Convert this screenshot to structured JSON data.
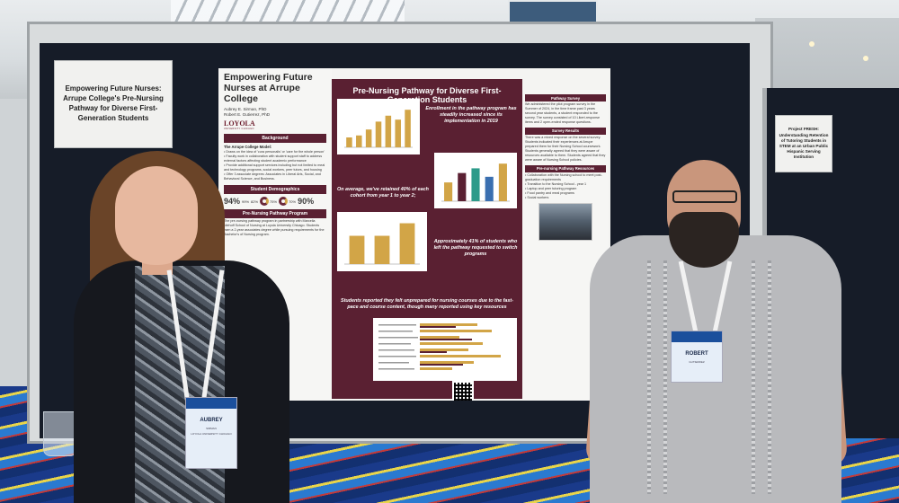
{
  "left_sign": {
    "text": "Empowering Future Nurses: Arrupe College's Pre-Nursing Pathway for Diverse First-Generation Students"
  },
  "right_sign": {
    "text": "Project FRESH: Understanding Retention of Tutoring Students in STEM at an Urban Public Hispanic Serving Institution"
  },
  "poster": {
    "title": "Empowering Future Nurses at Arrupe College",
    "authors": [
      "Aubrey E. Sirman, PhD",
      "Robert E. Gutierrez, PhD"
    ],
    "logo": "LOYOLA",
    "logo_sub": "UNIVERSITY CHICAGO",
    "background": {
      "heading": "Background",
      "model_heading": "The Arrupe College Model:",
      "points": [
        "Draws on the idea of 'cura personalis' or 'care for the whole person'",
        "Faculty work in collaboration with student support staff to address external factors affecting student academic performance",
        "Provide additional support services including but not limited to meal and technology programs, social workers, peer tutors, and housing",
        "Offer 3 associate degrees: Associates in Liberal Arts, Social, and Behavioral Science, and Business."
      ]
    },
    "demographics": {
      "heading": "Student Demographics",
      "stats": [
        {
          "value": "94%"
        },
        {
          "value": "99%"
        },
        {
          "value": "82%"
        },
        {
          "value": "75%"
        },
        {
          "value": "70%"
        },
        {
          "value": "90%"
        }
      ]
    },
    "program_heading": "Pre-Nursing Pathway Program",
    "program_body": "The pre-nursing pathway program in partnership with Marcella Niehoff School of Nursing at Loyola University Chicago. Students earn a 2-year associates degree while pursuing requirements for the Bachelor's of Nursing program.",
    "mid_title": "Pre-Nursing Pathway for Diverse First-Generation Students",
    "mid_points": [
      "Enrollment in the pathway program has steadily increased since its implementation in 2019",
      "On average, we've retained 40% of each cohort from year 1 to year 2;",
      "Approximately 41% of students who left the pathway requested to switch programs",
      "Students reported they felt unprepared for nursing courses due to the fast-pace and course content, though many reported using key resources"
    ],
    "right_sections": [
      {
        "heading": "Pathway Survey",
        "body": "We administered the pilot program survey in the Summer of 2024, in the time frame past 3 years second year students, a student responded to the survey. The survey consisted of 10 Likert-response items and 2 open-ended response questions."
      },
      {
        "heading": "Survey Results",
        "body": "There was a mixed response on the several survey. Students indicated their experiences at Arrupe prepared them for their Nursing School coursework. Students generally agreed that they were aware of resources available to them. Students agreed that they were aware of Nursing School policies."
      },
      {
        "heading": "Pre-nursing Pathway Resources",
        "items": [
          "Collaboration with the Nursing school to meet post-graduation requirements",
          "Transition to the Nursing School - year 1",
          "Laptop and peer tutoring program",
          "Food pantry and meal programs",
          "Social workers"
        ]
      }
    ]
  },
  "charts": [
    {
      "name": "enrollment",
      "values": [
        10,
        12,
        18,
        26,
        32,
        28,
        38
      ]
    },
    {
      "name": "cohort",
      "values": [
        20,
        30,
        35,
        26,
        40
      ]
    },
    {
      "name": "retention",
      "values": [
        45,
        45,
        65
      ]
    }
  ],
  "person_left": {
    "badge_name": "AUBREY",
    "badge_surname": "SIRMAN",
    "badge_org": "LOYOLA UNIVERSITY CHICAGO"
  },
  "person_right": {
    "badge_name": "ROBERT",
    "badge_surname": "GUTIERREZ"
  },
  "colors": {
    "maroon": "#5a2032",
    "gold": "#d2a547",
    "board": "#161c28"
  }
}
